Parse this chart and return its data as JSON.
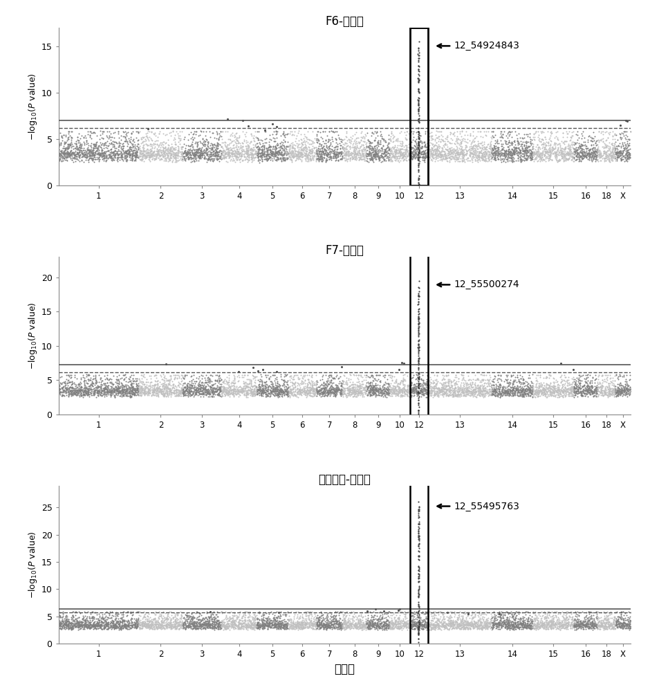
{
  "panels": [
    {
      "title": "F6-鸟嘟呐",
      "ylim": [
        0,
        17
      ],
      "yticks": [
        0,
        5,
        10,
        15
      ],
      "solid_line": 7.0,
      "dashed_line": 6.2,
      "annotation": "12_54924843",
      "annotation_peak": 15.5,
      "has_box": true
    },
    {
      "title": "F7-鸟嘟呐",
      "ylim": [
        0,
        23
      ],
      "yticks": [
        0,
        5,
        10,
        15,
        20
      ],
      "solid_line": 7.3,
      "dashed_line": 6.2,
      "annotation": "12_55500274",
      "annotation_peak": 19.5,
      "has_box": false
    },
    {
      "title": "荧荧分析-鸟嘟呐",
      "ylim": [
        0,
        29
      ],
      "yticks": [
        0,
        5,
        10,
        15,
        20,
        25
      ],
      "solid_line": 6.3,
      "dashed_line": 5.7,
      "annotation": "12_55495763",
      "annotation_peak": 26.0,
      "has_box": false
    }
  ],
  "chr_labels": [
    "1",
    "2",
    "3",
    "4",
    "5",
    "6",
    "7",
    "8",
    "9",
    "10",
    "12",
    "13",
    "14",
    "15",
    "16",
    "18",
    "X"
  ],
  "chr_sizes": [
    274,
    151,
    132,
    121,
    108,
    96,
    89,
    82,
    79,
    70,
    61,
    218,
    141,
    140,
    80,
    62,
    52
  ],
  "chr_nums": [
    1,
    2,
    3,
    4,
    5,
    6,
    7,
    8,
    9,
    10,
    12,
    13,
    14,
    15,
    16,
    18,
    19
  ],
  "color_odd": "#808080",
  "color_even": "#c0c0c0",
  "color_peak": "#404040",
  "bg_color": "#ffffff",
  "xlabel": "染色体"
}
